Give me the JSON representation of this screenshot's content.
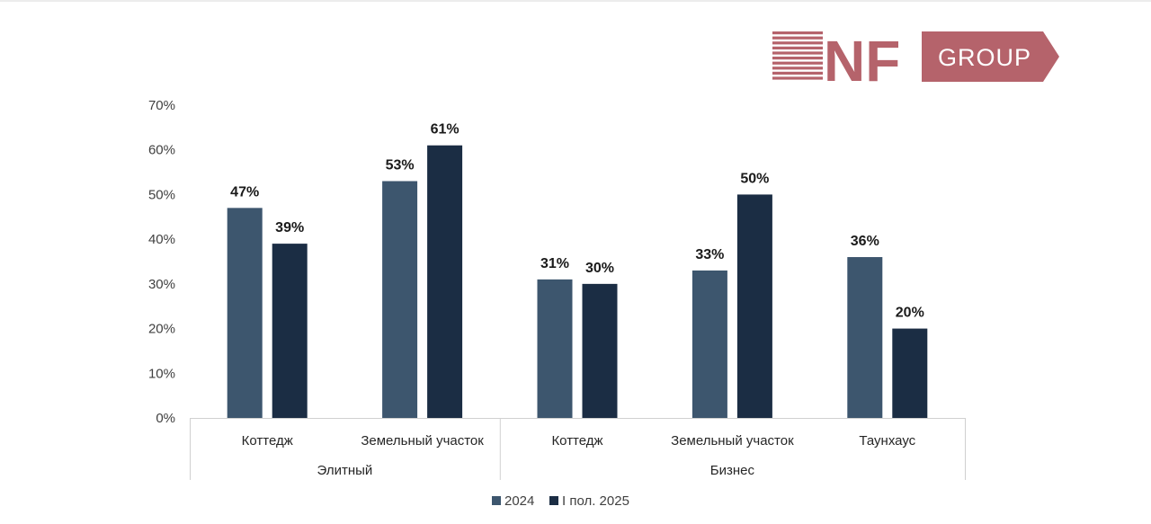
{
  "logo": {
    "mark": "NF",
    "group": "GROUP",
    "color": "#b5636b"
  },
  "chart_data": {
    "type": "bar",
    "categories": [
      "Коттедж",
      "Земельный участок",
      "Коттедж",
      "Земельный участок",
      "Таунхаус"
    ],
    "groups": [
      {
        "label": "Элитный",
        "span": [
          0,
          1
        ]
      },
      {
        "label": "Бизнес",
        "span": [
          2,
          4
        ]
      }
    ],
    "series": [
      {
        "name": "2024",
        "color": "#3d566e",
        "values": [
          47,
          53,
          31,
          33,
          36
        ],
        "labels": [
          "47%",
          "53%",
          "31%",
          "33%",
          "36%"
        ]
      },
      {
        "name": "I пол. 2025",
        "color": "#1b2d44",
        "values": [
          39,
          61,
          30,
          50,
          20
        ],
        "labels": [
          "39%",
          "61%",
          "30%",
          "50%",
          "20%"
        ]
      }
    ],
    "yticks": [
      "0%",
      "10%",
      "20%",
      "30%",
      "40%",
      "50%",
      "60%",
      "70%"
    ],
    "ylim": [
      0,
      70
    ],
    "title": "",
    "xlabel": "",
    "ylabel": "",
    "grid": false,
    "legend": "bottom"
  }
}
